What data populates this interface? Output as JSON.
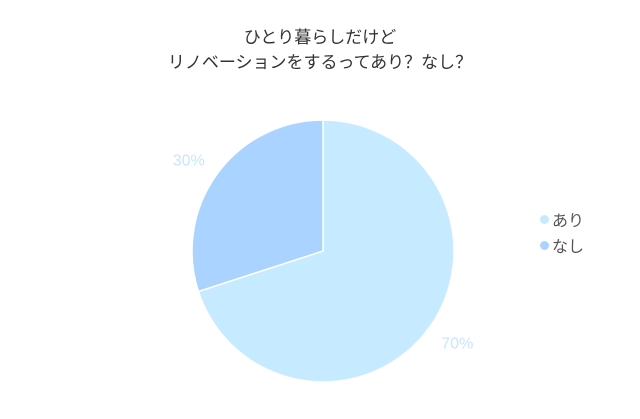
{
  "chart_data": {
    "type": "pie",
    "title_lines": [
      "ひとり暮らしだけど",
      "リノベーションをするってあり？なし？"
    ],
    "slices": [
      {
        "label": "あり",
        "value": 70,
        "data_label": "70%",
        "color": "#c6eaff"
      },
      {
        "label": "なし",
        "value": 30,
        "data_label": "30%",
        "color": "#aad4ff"
      }
    ],
    "start_angle": "top",
    "direction": "clockwise",
    "legend_position": "right",
    "data_label_color": "#c6e6ff"
  }
}
